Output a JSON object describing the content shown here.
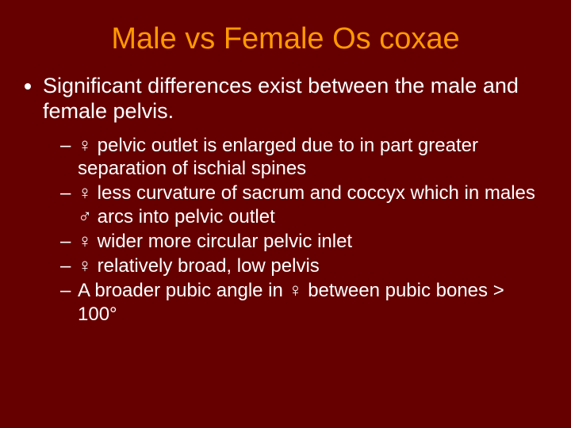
{
  "colors": {
    "background": "#660000",
    "title": "#ff9900",
    "body_text": "#ffffff"
  },
  "typography": {
    "title_fontsize": 38,
    "level1_fontsize": 27,
    "level2_fontsize": 24,
    "font_family": "Arial"
  },
  "slide": {
    "title": "Male vs Female Os coxae",
    "bullets": [
      {
        "text": "Significant differences exist between the male and female pelvis.",
        "sub": [
          "♀ pelvic outlet is enlarged due to in part greater separation of ischial spines",
          "♀ less curvature of sacrum and coccyx which in males ♂ arcs into pelvic outlet",
          "♀ wider more circular pelvic inlet",
          "♀ relatively broad, low pelvis",
          "A broader pubic angle in ♀ between pubic bones > 100°"
        ]
      }
    ]
  }
}
